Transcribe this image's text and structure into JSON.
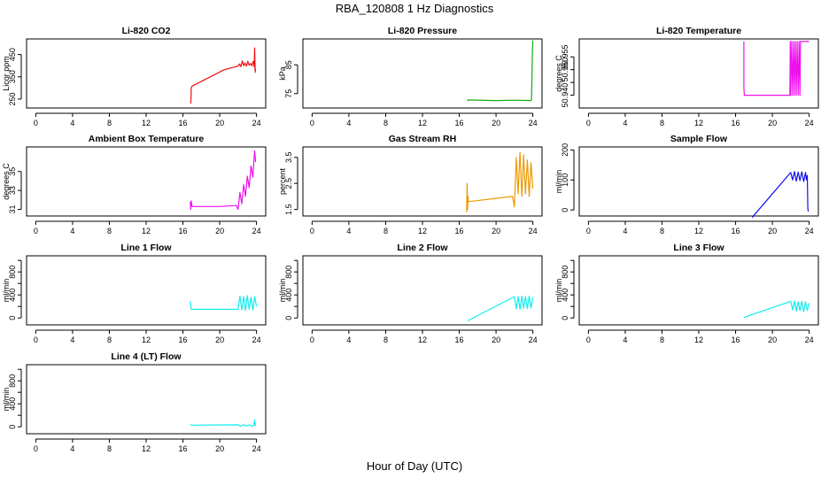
{
  "figure": {
    "title": "RBA_120808  1 Hz Diagnostics",
    "xlabel": "Hour of Day (UTC)"
  },
  "chart_data": [
    {
      "type": "line",
      "title": "Li-820 CO2",
      "xlabel": "",
      "ylabel": "Licor ppm",
      "xlim": [
        -1,
        25
      ],
      "ylim": [
        210,
        520
      ],
      "xticks": [
        0,
        4,
        8,
        12,
        16,
        20,
        24
      ],
      "yticks": [
        250,
        350,
        450
      ],
      "color": "#ee1111",
      "series": [
        {
          "name": "Li-820 CO2",
          "x": [
            16.85,
            16.88,
            16.9,
            17.0,
            20.5,
            22.0,
            22.15,
            22.3,
            22.45,
            22.6,
            22.75,
            22.9,
            23.05,
            23.2,
            23.35,
            23.5,
            23.65,
            23.75,
            23.8,
            23.85,
            23.9
          ],
          "y": [
            230,
            258,
            300,
            308,
            382,
            398,
            408,
            396,
            422,
            400,
            412,
            398,
            420,
            402,
            410,
            400,
            420,
            395,
            480,
            370,
            388
          ]
        }
      ]
    },
    {
      "type": "line",
      "title": "Li-820 Pressure",
      "xlabel": "",
      "ylabel": "kPa",
      "xlim": [
        -1,
        25
      ],
      "ylim": [
        70,
        94
      ],
      "xticks": [
        0,
        4,
        8,
        12,
        16,
        20,
        24
      ],
      "yticks": [
        75,
        85
      ],
      "color": "#11aa11",
      "series": [
        {
          "name": "Li-820 Pressure",
          "x": [
            16.85,
            17.0,
            20.0,
            22.0,
            23.8,
            23.85,
            23.9,
            23.95,
            24.0
          ],
          "y": [
            72.5,
            72.8,
            72.6,
            72.7,
            72.6,
            73.0,
            80.0,
            89.0,
            93.5
          ]
        }
      ]
    },
    {
      "type": "line",
      "title": "Li-820 Temperature",
      "xlabel": "",
      "ylabel": "degrees C",
      "xlim": [
        -1,
        25
      ],
      "ylim": [
        50.935,
        50.962
      ],
      "xticks": [
        0,
        4,
        8,
        12,
        16,
        20,
        24
      ],
      "yticks": [
        50.94,
        50.945,
        50.95,
        50.955
      ],
      "ytick_labels": [
        "50.940",
        "",
        "50.950",
        "50.955"
      ],
      "color": "#ee11ee",
      "series": [
        {
          "name": "Li-820 Temperature",
          "x": [
            16.9,
            16.9,
            16.95,
            21.9,
            21.95,
            22.0,
            22.1,
            22.2,
            22.3,
            22.4,
            22.5,
            22.6,
            22.7,
            22.8,
            22.9,
            23.0,
            23.05,
            23.1,
            24.0
          ],
          "y": [
            50.961,
            50.943,
            50.94,
            50.94,
            50.961,
            50.94,
            50.961,
            50.94,
            50.961,
            50.94,
            50.961,
            50.94,
            50.961,
            50.94,
            50.961,
            50.94,
            50.961,
            50.961,
            50.961
          ]
        }
      ]
    },
    {
      "type": "line",
      "title": "Ambient Box Temperature",
      "xlabel": "",
      "ylabel": "degrees C",
      "xlim": [
        -1,
        25
      ],
      "ylim": [
        30.3,
        37.6
      ],
      "xticks": [
        0,
        4,
        8,
        12,
        16,
        20,
        24
      ],
      "yticks": [
        31,
        33,
        35
      ],
      "color": "#ee11ee",
      "series": [
        {
          "name": "Ambient Box Temperature",
          "x": [
            16.8,
            16.85,
            16.9,
            17.0,
            20.0,
            21.8,
            22.0,
            22.2,
            22.4,
            22.6,
            22.8,
            23.0,
            23.2,
            23.4,
            23.6,
            23.8,
            23.9
          ],
          "y": [
            31.8,
            31.0,
            31.9,
            31.3,
            31.3,
            31.4,
            31.0,
            32.8,
            31.6,
            33.6,
            32.4,
            34.5,
            33.3,
            35.6,
            34.4,
            37.2,
            36.0
          ]
        }
      ]
    },
    {
      "type": "line",
      "title": "Gas Stream RH",
      "xlabel": "",
      "ylabel": "percent",
      "xlim": [
        -1,
        25
      ],
      "ylim": [
        1.25,
        3.9
      ],
      "xticks": [
        0,
        4,
        8,
        12,
        16,
        20,
        24
      ],
      "yticks": [
        1.5,
        2.5,
        3.5
      ],
      "color": "#ee9900",
      "series": [
        {
          "name": "Gas Stream RH",
          "x": [
            16.8,
            16.85,
            16.9,
            16.95,
            17.0,
            21.8,
            22.0,
            22.2,
            22.4,
            22.6,
            22.8,
            23.0,
            23.2,
            23.4,
            23.6,
            23.8,
            24.0
          ],
          "y": [
            1.4,
            2.5,
            1.5,
            2.0,
            1.8,
            2.0,
            1.6,
            3.5,
            2.1,
            3.7,
            2.0,
            3.6,
            2.1,
            3.4,
            2.0,
            3.3,
            2.3
          ]
        }
      ]
    },
    {
      "type": "line",
      "title": "Sample Flow",
      "xlabel": "",
      "ylabel": "ml/min",
      "xlim": [
        -1,
        25
      ],
      "ylim": [
        -20,
        210
      ],
      "xticks": [
        0,
        4,
        8,
        12,
        16,
        20,
        24
      ],
      "yticks": [
        0,
        100,
        200
      ],
      "color": "#1111ee",
      "series": [
        {
          "name": "Sample Flow",
          "x": [
            17.8,
            22.0,
            22.2,
            22.4,
            22.6,
            22.8,
            23.0,
            23.2,
            23.4,
            23.6,
            23.7,
            23.8,
            23.85,
            23.9
          ],
          "y": [
            -25,
            125,
            100,
            128,
            96,
            126,
            98,
            127,
            95,
            125,
            100,
            115,
            5,
            -5
          ]
        }
      ]
    },
    {
      "type": "line",
      "title": "Line 1 Flow",
      "xlabel": "",
      "ylabel": "ml/min",
      "xlim": [
        -1,
        25
      ],
      "ylim": [
        -120,
        1080
      ],
      "xticks": [
        0,
        4,
        8,
        12,
        16,
        20,
        24
      ],
      "yticks": [
        0,
        400,
        800
      ],
      "ytick_labels": [
        "0",
        "400",
        "800"
      ],
      "extra_yticks": [
        200,
        600,
        1000
      ],
      "color": "#11eeee",
      "series": [
        {
          "name": "Line 1 Flow",
          "x": [
            16.8,
            16.85,
            16.9,
            22.0,
            22.2,
            22.4,
            22.6,
            22.8,
            23.0,
            23.2,
            23.4,
            23.6,
            23.8,
            24.0
          ],
          "y": [
            290,
            230,
            150,
            150,
            380,
            140,
            370,
            130,
            390,
            150,
            360,
            140,
            370,
            200
          ]
        }
      ]
    },
    {
      "type": "line",
      "title": "Line 2 Flow",
      "xlabel": "",
      "ylabel": "ml/min",
      "xlim": [
        -1,
        25
      ],
      "ylim": [
        -120,
        1080
      ],
      "xticks": [
        0,
        4,
        8,
        12,
        16,
        20,
        24
      ],
      "yticks": [
        0,
        400,
        800
      ],
      "ytick_labels": [
        "0",
        "400",
        "800"
      ],
      "extra_yticks": [
        200,
        600,
        1000
      ],
      "color": "#11eeee",
      "series": [
        {
          "name": "Line 2 Flow",
          "x": [
            16.9,
            22.0,
            22.2,
            22.4,
            22.6,
            22.8,
            23.0,
            23.2,
            23.4,
            23.6,
            23.8,
            24.0
          ],
          "y": [
            -50,
            370,
            160,
            370,
            150,
            380,
            170,
            370,
            160,
            380,
            170,
            360
          ]
        }
      ]
    },
    {
      "type": "line",
      "title": "Line 3 Flow",
      "xlabel": "",
      "ylabel": "ml/min",
      "xlim": [
        -1,
        25
      ],
      "ylim": [
        -120,
        1080
      ],
      "xticks": [
        0,
        4,
        8,
        12,
        16,
        20,
        24
      ],
      "yticks": [
        0,
        400,
        800
      ],
      "ytick_labels": [
        "0",
        "400",
        "800"
      ],
      "extra_yticks": [
        200,
        600,
        1000
      ],
      "color": "#11eeee",
      "series": [
        {
          "name": "Line 3 Flow",
          "x": [
            16.9,
            22.0,
            22.2,
            22.4,
            22.6,
            22.8,
            23.0,
            23.2,
            23.4,
            23.6,
            23.8,
            24.0
          ],
          "y": [
            10,
            290,
            140,
            290,
            120,
            280,
            130,
            290,
            110,
            280,
            130,
            260
          ]
        }
      ]
    },
    {
      "type": "line",
      "title": "Line 4 (LT) Flow",
      "xlabel": "",
      "ylabel": "ml/min",
      "xlim": [
        -1,
        25
      ],
      "ylim": [
        -120,
        1080
      ],
      "xticks": [
        0,
        4,
        8,
        12,
        16,
        20,
        24
      ],
      "yticks": [
        0,
        400,
        800
      ],
      "ytick_labels": [
        "0",
        "400",
        "800"
      ],
      "extra_yticks": [
        200,
        600,
        1000
      ],
      "color": "#11eeee",
      "series": [
        {
          "name": "Line 4 (LT) Flow",
          "x": [
            16.8,
            16.9,
            22.0,
            22.3,
            22.6,
            22.9,
            23.2,
            23.5,
            23.7,
            23.8,
            23.85,
            23.9
          ],
          "y": [
            40,
            30,
            35,
            10,
            40,
            15,
            35,
            10,
            30,
            120,
            20,
            60
          ]
        }
      ]
    }
  ]
}
